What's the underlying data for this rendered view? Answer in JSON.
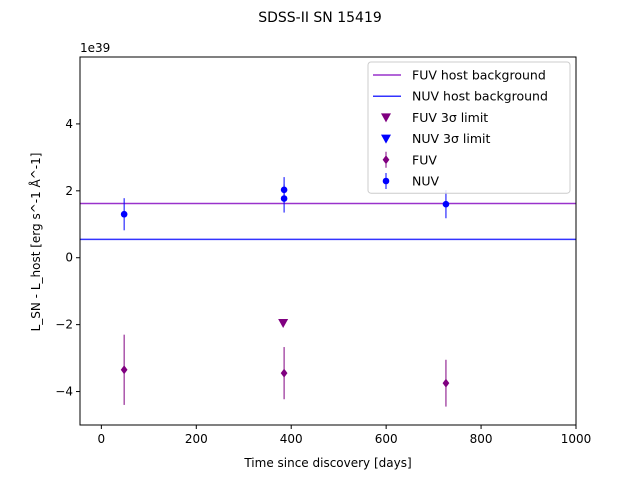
{
  "chart_data": {
    "type": "scatter",
    "title": "SDSS-II SN 15419",
    "xlabel": "Time since discovery [days]",
    "ylabel": "L_SN - L_host [erg s^-1 Å^-1]",
    "offset_label": "1e39",
    "xlim": [
      -45,
      1000
    ],
    "ylim": [
      -5,
      6
    ],
    "x_ticks": [
      0,
      200,
      400,
      600,
      800,
      1000
    ],
    "x_tick_labels": [
      "0",
      "200",
      "400",
      "600",
      "800",
      "1000"
    ],
    "y_ticks": [
      -4,
      -2,
      0,
      2,
      4
    ],
    "y_tick_labels": [
      "−4",
      "−2",
      "0",
      "2",
      "4"
    ],
    "grid": false,
    "legend_position": "top-right",
    "colors": {
      "fuv": "#800080",
      "fuv_line": "#9932cc",
      "nuv": "#0000ff",
      "nuv_line": "#3333ff"
    },
    "series": [
      {
        "key": "fuv_bg",
        "name": "FUV host background",
        "kind": "hline",
        "y": 1.62,
        "color": "#9932cc"
      },
      {
        "key": "nuv_bg",
        "name": "NUV host background",
        "kind": "hline",
        "y": 0.55,
        "color": "#3333ff"
      },
      {
        "key": "fuv_limit",
        "name": "FUV 3σ limit",
        "kind": "limit",
        "color": "#800080",
        "points": [
          {
            "x": 383,
            "y": -1.95
          }
        ]
      },
      {
        "key": "nuv_limit",
        "name": "NUV 3σ limit",
        "kind": "limit",
        "color": "#0000ff",
        "points": []
      },
      {
        "key": "fuv",
        "name": "FUV",
        "kind": "errorbar",
        "marker": "diamond",
        "color": "#800080",
        "points": [
          {
            "x": 48,
            "y": -3.35,
            "err": 1.05
          },
          {
            "x": 385,
            "y": -3.45,
            "err": 0.78
          },
          {
            "x": 726,
            "y": -3.75,
            "err": 0.7
          }
        ]
      },
      {
        "key": "nuv",
        "name": "NUV",
        "kind": "errorbar",
        "marker": "circle",
        "color": "#0000ff",
        "points": [
          {
            "x": 48,
            "y": 1.3,
            "err": 0.48
          },
          {
            "x": 385,
            "y": 2.03,
            "err": 0.38
          },
          {
            "x": 385,
            "y": 1.77,
            "err": 0.42
          },
          {
            "x": 726,
            "y": 1.6,
            "err": 0.42
          }
        ]
      }
    ]
  }
}
